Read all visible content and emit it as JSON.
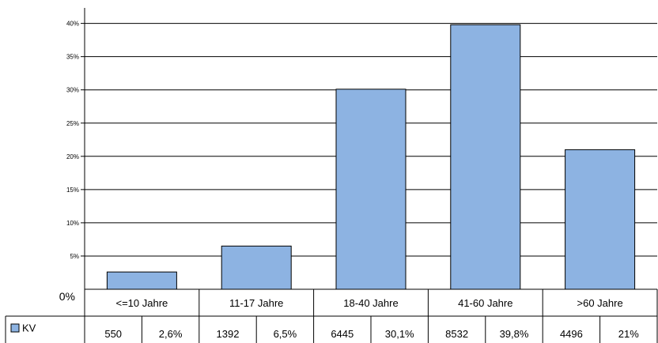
{
  "chart_data": {
    "type": "bar",
    "categories": [
      "<=10 Jahre",
      "11-17 Jahre",
      "18-40 Jahre",
      "41-60 Jahre",
      ">60 Jahre"
    ],
    "series": [
      {
        "name": "KV",
        "values": [
          2.6,
          6.5,
          30.1,
          39.8,
          21.0
        ],
        "counts": [
          "550",
          "1392",
          "6445",
          "8532",
          "4496"
        ],
        "percent_labels": [
          "2,6%",
          "6,5%",
          "30,1%",
          "39,8%",
          "21%"
        ]
      }
    ],
    "y_ticks": [
      {
        "value": 0,
        "label": "0%"
      },
      {
        "value": 5,
        "label": "5%"
      },
      {
        "value": 10,
        "label": "10%"
      },
      {
        "value": 15,
        "label": "15%"
      },
      {
        "value": 20,
        "label": "20%"
      },
      {
        "value": 25,
        "label": "25%"
      },
      {
        "value": 30,
        "label": "30%"
      },
      {
        "value": 35,
        "label": "35%"
      },
      {
        "value": 40,
        "label": "40%"
      }
    ],
    "ylim": [
      0,
      42
    ],
    "grid": true,
    "legend": "bottom-left, in data table",
    "colors": {
      "bar_fill": "#8db3e2",
      "plot_background": "#ffffff",
      "grid": "#000000"
    }
  }
}
